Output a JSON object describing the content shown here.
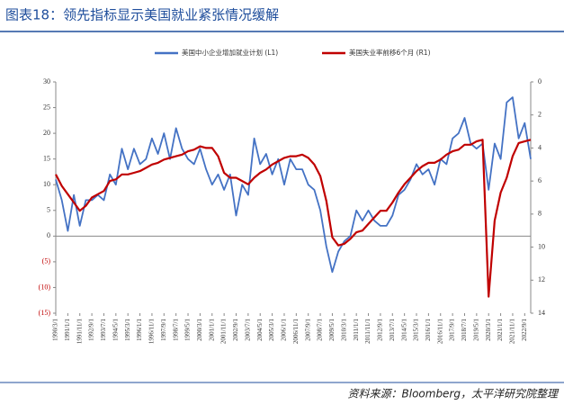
{
  "chart_data": {
    "type": "line",
    "title": "图表18：领先指标显示美国就业紧张情况缓解",
    "source": "资料来源：Bloomberg，太平洋研究院整理",
    "categories": [
      "1990/3/1",
      null,
      "1991/1/1",
      null,
      "1991/11/1",
      null,
      "1992/9/1",
      null,
      "1993/7/1",
      null,
      "1994/5/1",
      null,
      "1995/3/1",
      null,
      "1996/1/1",
      null,
      "1996/11/1",
      null,
      "1997/9/1",
      null,
      "1998/7/1",
      null,
      "1999/5/1",
      null,
      "2000/3/1",
      null,
      "2001/1/1",
      null,
      "2001/11/1",
      null,
      "2002/9/1",
      null,
      "2003/7/1",
      null,
      "2004/5/1",
      null,
      "2005/3/1",
      null,
      "2006/1/1",
      null,
      "2006/11/1",
      null,
      "2007/9/1",
      null,
      "2008/7/1",
      null,
      "2009/5/1",
      null,
      "2010/3/1",
      null,
      "2011/1/1",
      null,
      "2011/11/1",
      null,
      "2012/9/1",
      null,
      "2013/7/1",
      null,
      "2014/5/1",
      null,
      "2015/3/1",
      null,
      "2016/1/1",
      null,
      "2016/11/1",
      null,
      "2017/9/1",
      null,
      "2018/7/1",
      null,
      "2019/5/1",
      null,
      "2020/3/1",
      null,
      "2021/1/1",
      null,
      "2021/11/1",
      null,
      "2022/9/1",
      null
    ],
    "series": [
      {
        "name": "美国中小企业增加就业计划 (L1)",
        "color": "#4472c4",
        "axis": "y",
        "values": [
          11,
          7,
          1,
          8,
          2,
          7,
          7,
          8,
          7,
          12,
          10,
          17,
          13,
          17,
          14,
          15,
          19,
          16,
          20,
          15,
          21,
          17,
          15,
          14,
          17,
          13,
          10,
          12,
          9,
          12,
          4,
          10,
          8,
          19,
          14,
          16,
          12,
          15,
          10,
          15,
          13,
          13,
          10,
          9,
          5,
          -2,
          -7,
          -3,
          -1,
          0,
          5,
          3,
          5,
          3,
          2,
          2,
          4,
          8,
          9,
          11,
          14,
          12,
          13,
          10,
          15,
          14,
          19,
          20,
          23,
          18,
          17,
          18,
          9,
          18,
          15,
          26,
          27,
          19,
          22,
          15
        ]
      },
      {
        "name": "美国失业率前移6个月 (R1)",
        "color": "#c00000",
        "axis": "y2",
        "values": [
          5.6,
          6.3,
          6.8,
          7.3,
          7.8,
          7.5,
          7.0,
          6.8,
          6.6,
          6.0,
          5.9,
          5.6,
          5.6,
          5.5,
          5.4,
          5.2,
          5.0,
          4.9,
          4.7,
          4.6,
          4.5,
          4.4,
          4.2,
          4.1,
          3.9,
          4.0,
          4.0,
          4.5,
          5.5,
          5.8,
          5.8,
          6.0,
          6.2,
          5.8,
          5.5,
          5.3,
          5.0,
          4.8,
          4.6,
          4.5,
          4.5,
          4.4,
          4.6,
          5.0,
          5.7,
          7.2,
          9.4,
          9.9,
          9.8,
          9.5,
          9.1,
          9.0,
          8.6,
          8.2,
          7.8,
          7.8,
          7.3,
          6.7,
          6.2,
          5.8,
          5.4,
          5.1,
          4.9,
          4.9,
          4.7,
          4.4,
          4.2,
          4.1,
          3.8,
          3.8,
          3.6,
          3.5,
          13.0,
          8.4,
          6.7,
          5.8,
          4.5,
          3.7,
          3.6,
          3.5
        ]
      }
    ],
    "ylim": [
      -15,
      30
    ],
    "yticks": [
      {
        "value": -15,
        "label": "(15)"
      },
      {
        "value": -10,
        "label": "(10)"
      },
      {
        "value": -5,
        "label": "(5)"
      },
      0,
      5,
      10,
      15,
      20,
      25,
      30
    ],
    "y2lim": [
      14,
      0
    ],
    "y2ticks": [
      0,
      2,
      4,
      6,
      8,
      10,
      12,
      14
    ],
    "legend": "top"
  }
}
